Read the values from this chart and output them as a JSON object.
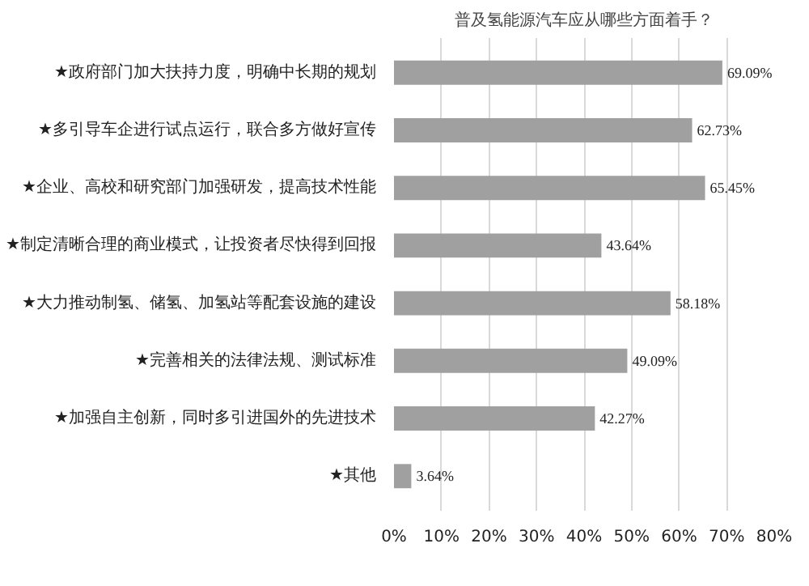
{
  "chart_data": {
    "type": "bar",
    "orientation": "horizontal",
    "title": "普及氢能源汽车应从哪些方面着手？",
    "categories": [
      "★政府部门加大扶持力度，明确中长期的规划",
      "★多引导车企进行试点运行，联合多方做好宣传",
      "★企业、高校和研究部门加强研发，提高技术性能",
      "★制定清晰合理的商业模式，让投资者尽快得到回报",
      "★大力推动制氢、储氢、加氢站等配套设施的建设",
      "★完善相关的法律法规、测试标准",
      "★加强自主创新，同时多引进国外的先进技术",
      "★其他"
    ],
    "values": [
      69.09,
      62.73,
      65.45,
      43.64,
      58.18,
      49.09,
      42.27,
      3.64
    ],
    "value_labels": [
      "69.09%",
      "62.73%",
      "65.45%",
      "43.64%",
      "58.18%",
      "49.09%",
      "42.27%",
      "3.64%"
    ],
    "color": "#a0a0a0",
    "xlim": [
      0,
      80
    ],
    "xticks": [
      {
        "value": 0,
        "label": "0%"
      },
      {
        "value": 10,
        "label": "10%"
      },
      {
        "value": 20,
        "label": "20%"
      },
      {
        "value": 30,
        "label": "30%"
      },
      {
        "value": 40,
        "label": "40%"
      },
      {
        "value": 50,
        "label": "50%"
      },
      {
        "value": 60,
        "label": "60%"
      },
      {
        "value": 70,
        "label": "70%"
      },
      {
        "value": 80,
        "label": "80%"
      }
    ],
    "grid": "x"
  }
}
